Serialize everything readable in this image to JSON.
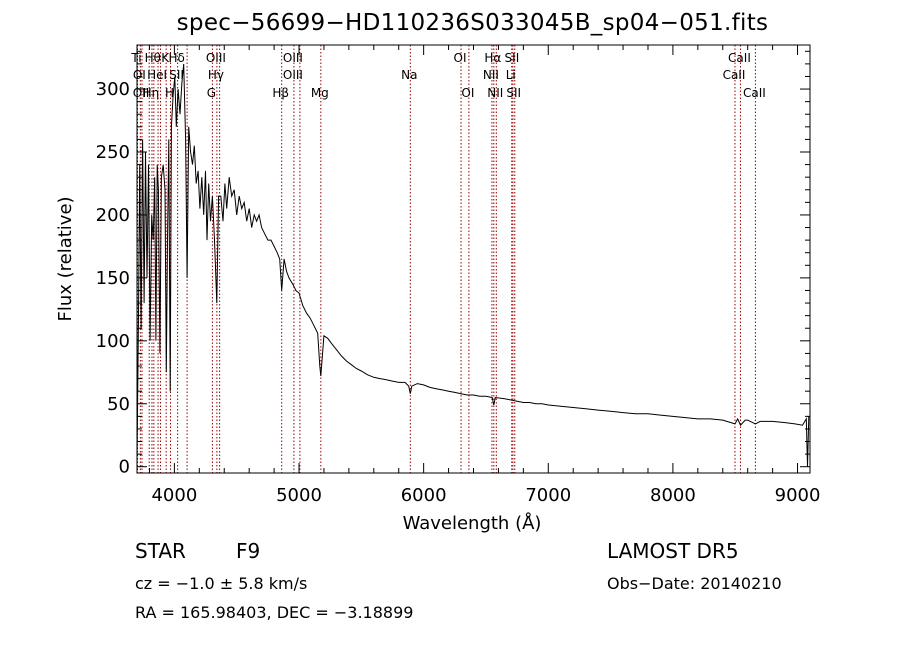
{
  "colors": {
    "background": "#ffffff",
    "foreground": "#000000"
  },
  "footer": {
    "object_class": "STAR",
    "subclass": "F9",
    "survey": "LAMOST DR5",
    "redshift": "cz = −1.0 ± 5.8 km/s",
    "obs_date": "Obs−Date: 20140210",
    "coords": "RA = 165.98403, DEC =  −3.18899"
  },
  "chart_data": {
    "type": "line",
    "title": "spec−56699−HD110236S033045B_sp04−051.fits",
    "xlabel": "Wavelength (Å)",
    "ylabel": "Flux (relative)",
    "xlim": [
      3700,
      9100
    ],
    "ylim": [
      -5,
      335
    ],
    "xticks": [
      4000,
      5000,
      6000,
      7000,
      8000,
      9000
    ],
    "yticks": [
      0,
      50,
      100,
      150,
      200,
      250,
      300
    ],
    "grid": false,
    "series": [
      {
        "points": [
          [
            3700,
            5
          ],
          [
            3712,
            120
          ],
          [
            3722,
            240
          ],
          [
            3733,
            110
          ],
          [
            3745,
            260
          ],
          [
            3757,
            130
          ],
          [
            3768,
            250
          ],
          [
            3780,
            150
          ],
          [
            3792,
            240
          ],
          [
            3805,
            100
          ],
          [
            3818,
            200
          ],
          [
            3830,
            180
          ],
          [
            3842,
            230
          ],
          [
            3852,
            100
          ],
          [
            3862,
            240
          ],
          [
            3872,
            220
          ],
          [
            3884,
            90
          ],
          [
            3896,
            230
          ],
          [
            3910,
            240
          ],
          [
            3925,
            220
          ],
          [
            3935,
            75
          ],
          [
            3945,
            180
          ],
          [
            3955,
            260
          ],
          [
            3966,
            60
          ],
          [
            3976,
            270
          ],
          [
            3990,
            295
          ],
          [
            4003,
            310
          ],
          [
            4015,
            270
          ],
          [
            4030,
            300
          ],
          [
            4045,
            280
          ],
          [
            4060,
            305
          ],
          [
            4075,
            320
          ],
          [
            4090,
            260
          ],
          [
            4102,
            150
          ],
          [
            4115,
            270
          ],
          [
            4130,
            250
          ],
          [
            4145,
            240
          ],
          [
            4160,
            255
          ],
          [
            4175,
            225
          ],
          [
            4190,
            235
          ],
          [
            4205,
            205
          ],
          [
            4220,
            230
          ],
          [
            4235,
            200
          ],
          [
            4250,
            235
          ],
          [
            4262,
            180
          ],
          [
            4275,
            225
          ],
          [
            4290,
            195
          ],
          [
            4305,
            215
          ],
          [
            4322,
            180
          ],
          [
            4340,
            130
          ],
          [
            4355,
            215
          ],
          [
            4372,
            215
          ],
          [
            4390,
            195
          ],
          [
            4405,
            225
          ],
          [
            4420,
            205
          ],
          [
            4440,
            230
          ],
          [
            4460,
            215
          ],
          [
            4480,
            220
          ],
          [
            4500,
            200
          ],
          [
            4520,
            215
          ],
          [
            4540,
            205
          ],
          [
            4560,
            210
          ],
          [
            4580,
            195
          ],
          [
            4600,
            205
          ],
          [
            4620,
            190
          ],
          [
            4640,
            200
          ],
          [
            4660,
            195
          ],
          [
            4680,
            200
          ],
          [
            4700,
            190
          ],
          [
            4725,
            185
          ],
          [
            4750,
            180
          ],
          [
            4775,
            180
          ],
          [
            4800,
            175
          ],
          [
            4825,
            170
          ],
          [
            4845,
            165
          ],
          [
            4861,
            140
          ],
          [
            4880,
            165
          ],
          [
            4900,
            155
          ],
          [
            4920,
            150
          ],
          [
            4950,
            145
          ],
          [
            4975,
            140
          ],
          [
            5000,
            138
          ],
          [
            5030,
            128
          ],
          [
            5060,
            122
          ],
          [
            5090,
            118
          ],
          [
            5120,
            112
          ],
          [
            5150,
            106
          ],
          [
            5167,
            80
          ],
          [
            5175,
            72
          ],
          [
            5183,
            82
          ],
          [
            5200,
            104
          ],
          [
            5230,
            102
          ],
          [
            5260,
            98
          ],
          [
            5300,
            93
          ],
          [
            5340,
            88
          ],
          [
            5380,
            84
          ],
          [
            5420,
            81
          ],
          [
            5460,
            78
          ],
          [
            5500,
            76
          ],
          [
            5550,
            73
          ],
          [
            5600,
            71
          ],
          [
            5650,
            70
          ],
          [
            5700,
            69
          ],
          [
            5750,
            68
          ],
          [
            5800,
            67
          ],
          [
            5850,
            67
          ],
          [
            5880,
            64
          ],
          [
            5893,
            58
          ],
          [
            5905,
            64
          ],
          [
            5950,
            66
          ],
          [
            6000,
            65
          ],
          [
            6050,
            63
          ],
          [
            6100,
            62
          ],
          [
            6150,
            61
          ],
          [
            6200,
            60
          ],
          [
            6250,
            59
          ],
          [
            6300,
            58
          ],
          [
            6350,
            57
          ],
          [
            6400,
            57
          ],
          [
            6450,
            56
          ],
          [
            6500,
            56
          ],
          [
            6550,
            55
          ],
          [
            6563,
            49
          ],
          [
            6575,
            55
          ],
          [
            6650,
            54
          ],
          [
            6700,
            53
          ],
          [
            6750,
            52
          ],
          [
            6800,
            51
          ],
          [
            6850,
            51
          ],
          [
            6900,
            50
          ],
          [
            6950,
            50
          ],
          [
            7000,
            49
          ],
          [
            7100,
            48
          ],
          [
            7200,
            47
          ],
          [
            7300,
            46
          ],
          [
            7400,
            45
          ],
          [
            7500,
            44
          ],
          [
            7600,
            43
          ],
          [
            7700,
            42
          ],
          [
            7800,
            42
          ],
          [
            7900,
            41
          ],
          [
            8000,
            40
          ],
          [
            8100,
            39
          ],
          [
            8200,
            38
          ],
          [
            8300,
            38
          ],
          [
            8400,
            37
          ],
          [
            8498,
            34
          ],
          [
            8520,
            38
          ],
          [
            8542,
            33
          ],
          [
            8580,
            37
          ],
          [
            8600,
            37
          ],
          [
            8662,
            34
          ],
          [
            8700,
            36
          ],
          [
            8800,
            36
          ],
          [
            8900,
            35
          ],
          [
            8980,
            34
          ],
          [
            9040,
            33
          ],
          [
            9070,
            38
          ],
          [
            9080,
            0
          ],
          [
            9090,
            40
          ]
        ]
      }
    ],
    "lines": [
      {
        "x": 3704,
        "labels": [
          {
            "text": "Ti",
            "row": 0
          }
        ]
      },
      {
        "x": 3727,
        "labels": [
          {
            "text": "OI",
            "row": 1
          }
        ]
      },
      {
        "x": 3740,
        "labels": [
          {
            "text": "OII",
            "row": 2
          }
        ]
      },
      {
        "x": 3798,
        "labels": []
      },
      {
        "x": 3820,
        "labels": [
          {
            "text": "Hη",
            "row": 2
          }
        ]
      },
      {
        "x": 3835,
        "labels": [
          {
            "text": "Hθ",
            "row": 0
          }
        ]
      },
      {
        "x": 3869,
        "labels": [
          {
            "text": "HeI",
            "row": 1
          }
        ]
      },
      {
        "x": 3889,
        "labels": []
      },
      {
        "x": 3934,
        "labels": [
          {
            "text": "K",
            "row": 0
          }
        ]
      },
      {
        "x": 3969,
        "labels": [
          {
            "text": "H",
            "row": 2
          }
        ]
      },
      {
        "x": 4026,
        "labels": [
          {
            "text": "Hδ",
            "row": 0
          },
          {
            "text": "SII",
            "row": 1
          }
        ]
      },
      {
        "x": 4102,
        "labels": []
      },
      {
        "x": 4305,
        "labels": [
          {
            "text": "G",
            "row": 2
          }
        ]
      },
      {
        "x": 4341,
        "labels": [
          {
            "text": "OIII",
            "row": 0
          },
          {
            "text": "Hγ",
            "row": 1
          }
        ]
      },
      {
        "x": 4363,
        "labels": []
      },
      {
        "x": 4861,
        "labels": [
          {
            "text": "Hβ",
            "row": 2
          }
        ]
      },
      {
        "x": 4959,
        "labels": [
          {
            "text": "OIII",
            "row": 0
          },
          {
            "text": "OIII",
            "row": 1
          }
        ]
      },
      {
        "x": 5007,
        "labels": []
      },
      {
        "x": 5175,
        "labels": [
          {
            "text": "Mg",
            "row": 2
          }
        ]
      },
      {
        "x": 5893,
        "labels": [
          {
            "text": "Na",
            "row": 1
          }
        ]
      },
      {
        "x": 6300,
        "labels": [
          {
            "text": "OI",
            "row": 0
          }
        ]
      },
      {
        "x": 6363,
        "labels": [
          {
            "text": "OI",
            "row": 2
          }
        ]
      },
      {
        "x": 6548,
        "labels": [
          {
            "text": "NII",
            "row": 1
          }
        ]
      },
      {
        "x": 6563,
        "labels": [
          {
            "text": "Hα",
            "row": 0
          }
        ]
      },
      {
        "x": 6583,
        "labels": [
          {
            "text": "NII",
            "row": 2
          }
        ]
      },
      {
        "x": 6707,
        "labels": [
          {
            "text": "Li",
            "row": 1
          }
        ]
      },
      {
        "x": 6716,
        "labels": [
          {
            "text": "SII",
            "row": 0
          }
        ]
      },
      {
        "x": 6731,
        "labels": [
          {
            "text": "SII",
            "row": 2
          }
        ]
      },
      {
        "x": 8498,
        "labels": [
          {
            "text": "CaII",
            "row": 1
          }
        ]
      },
      {
        "x": 8542,
        "labels": [
          {
            "text": "CaII",
            "row": 0
          }
        ]
      },
      {
        "x": 8662,
        "labels": [
          {
            "text": "CaII",
            "row": 2
          }
        ]
      }
    ]
  }
}
